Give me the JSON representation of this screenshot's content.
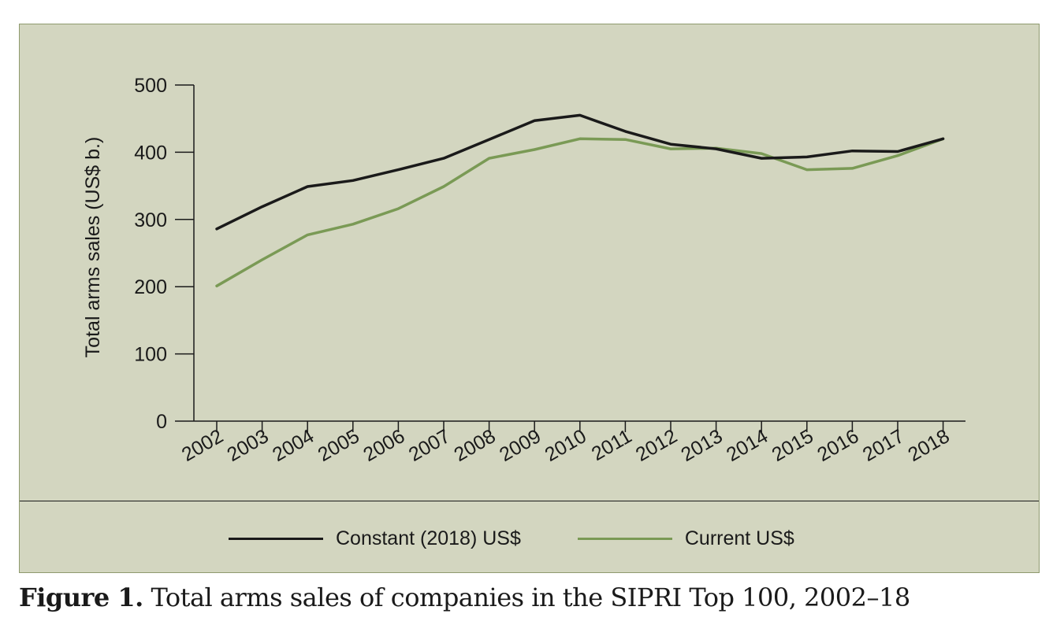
{
  "caption": {
    "label": "Figure 1.",
    "text": " Total arms sales of companies in the SIPRI Top 100, 2002–18"
  },
  "colors": {
    "panel_background": "#d3d6c0",
    "constant_series": "#1a1a1a",
    "current_series": "#7a9a55"
  },
  "chart_data": {
    "type": "line",
    "title": "",
    "xlabel": "",
    "ylabel": "Total arms sales (US$ b.)",
    "ylim": [
      0,
      500
    ],
    "yticks": [
      0,
      100,
      200,
      300,
      400,
      500
    ],
    "grid": false,
    "legend_position": "bottom",
    "categories": [
      "2002",
      "2003",
      "2004",
      "2005",
      "2006",
      "2007",
      "2008",
      "2009",
      "2010",
      "2011",
      "2012",
      "2013",
      "2014",
      "2015",
      "2016",
      "2017",
      "2018"
    ],
    "series": [
      {
        "name": "Constant (2018) US$",
        "color": "#1a1a1a",
        "values": [
          286,
          319,
          349,
          358,
          374,
          391,
          419,
          447,
          455,
          431,
          412,
          405,
          391,
          393,
          402,
          401,
          420
        ]
      },
      {
        "name": "Current US$",
        "color": "#7a9a55",
        "values": [
          201,
          240,
          277,
          293,
          316,
          349,
          391,
          404,
          420,
          419,
          405,
          406,
          398,
          374,
          376,
          395,
          420
        ]
      }
    ]
  }
}
